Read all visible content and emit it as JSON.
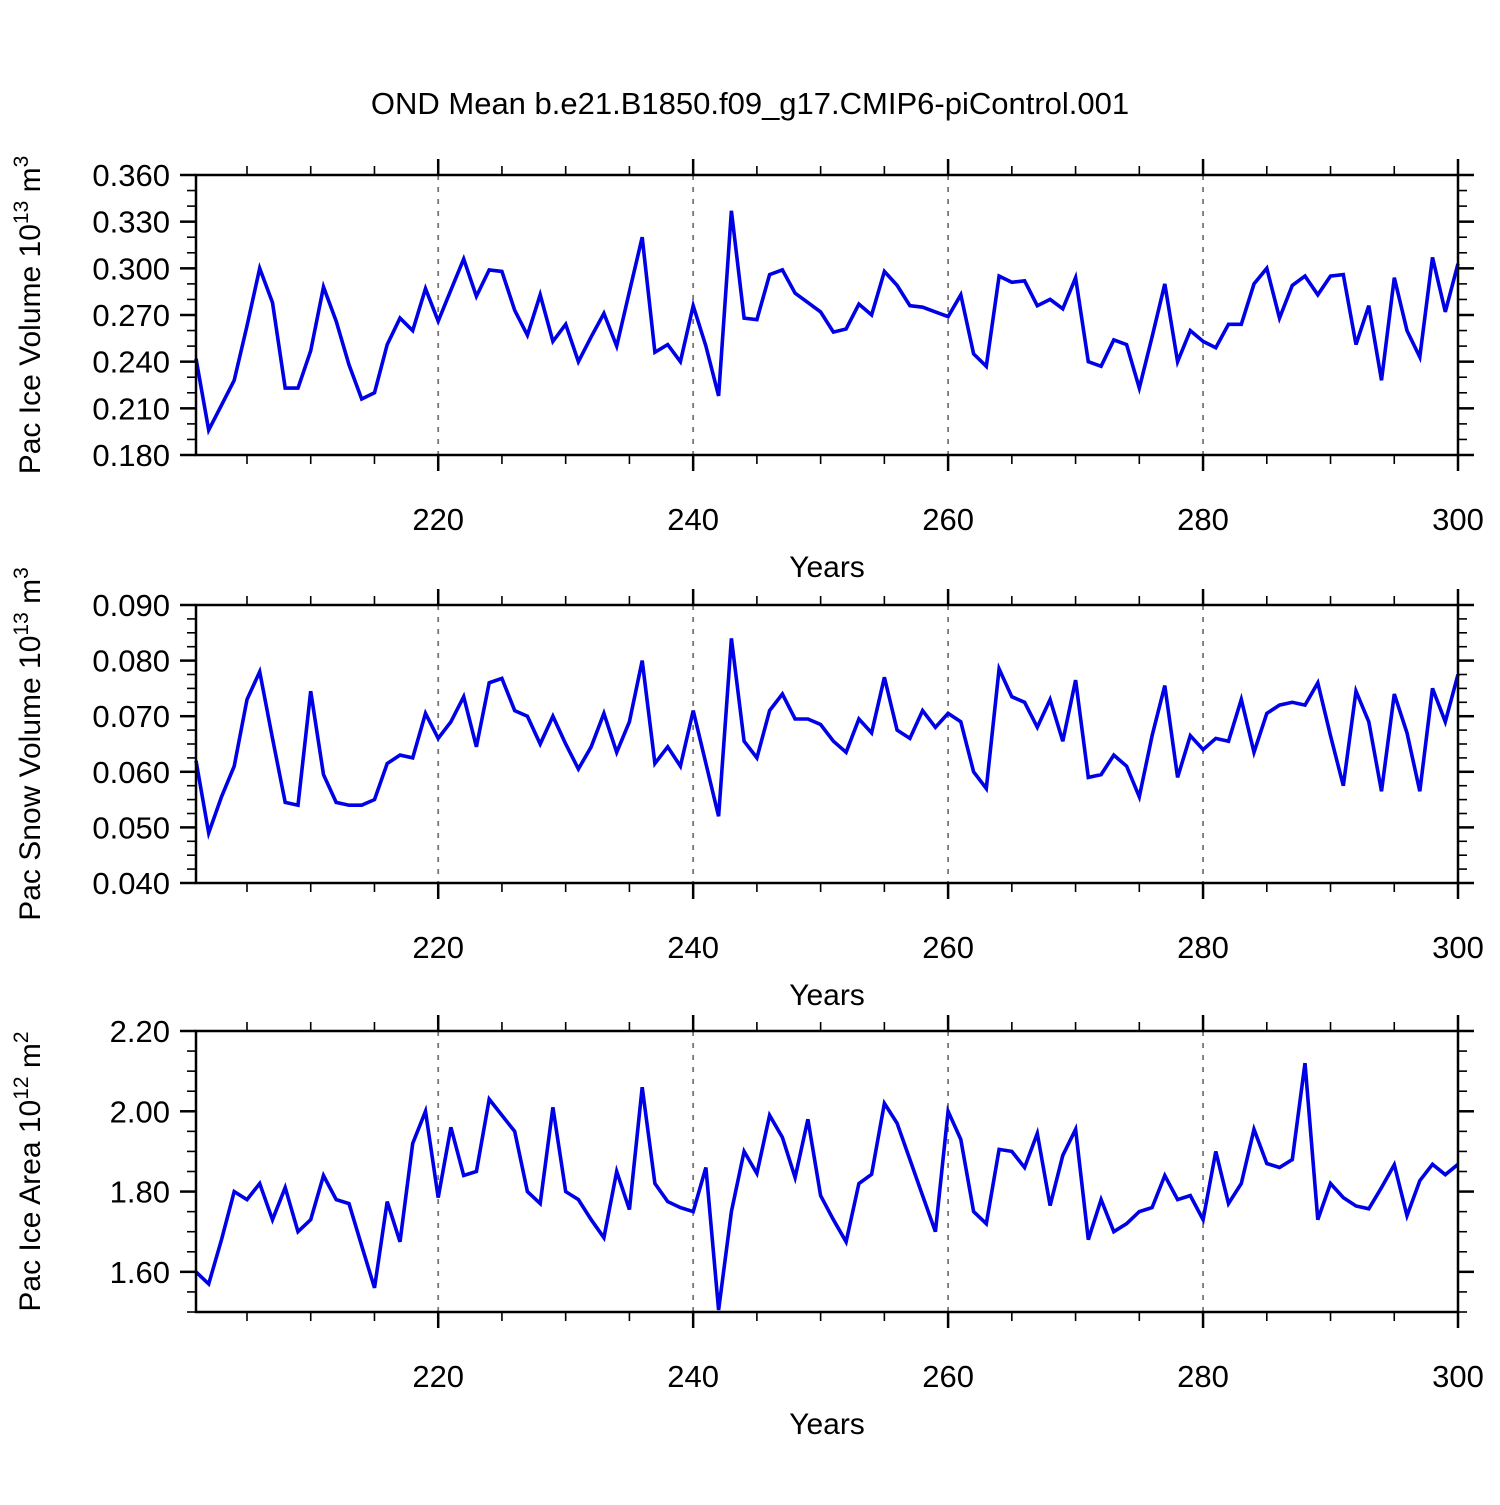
{
  "title": "OND Mean b.e21.B1850.f09_g17.CMIP6-piControl.001",
  "colors": {
    "line": "#0000e6",
    "grid": "#777777",
    "axis": "#000000",
    "background": "#ffffff",
    "text": "#000000"
  },
  "x": {
    "label": "Years",
    "min": 201,
    "max": 300,
    "major_ticks": [
      220,
      240,
      260,
      280,
      300
    ],
    "minor_step": 5,
    "gridlines": [
      220,
      240,
      260,
      280
    ]
  },
  "chart_data": [
    {
      "type": "line",
      "series_name": "Pac Ice Volume",
      "slug": "pac-ice-volume",
      "ylabel": "Pac Ice Volume 10^13 m^3",
      "ylabel_parts": [
        {
          "text": "Pac Ice Volume 10"
        },
        {
          "text": "13",
          "sup": true
        },
        {
          "text": " m"
        },
        {
          "text": "3",
          "sup": true
        }
      ],
      "ylim": [
        0.18,
        0.36
      ],
      "ytick_start": 0.18,
      "ytick_step": 0.03,
      "yminor_step": 0.01,
      "tick_decimals": 3,
      "x_start": 201,
      "x_step": 1,
      "values": [
        0.242,
        0.196,
        0.212,
        0.228,
        0.263,
        0.3,
        0.278,
        0.223,
        0.223,
        0.247,
        0.288,
        0.266,
        0.238,
        0.216,
        0.22,
        0.251,
        0.268,
        0.26,
        0.287,
        0.266,
        0.286,
        0.306,
        0.282,
        0.299,
        0.298,
        0.273,
        0.257,
        0.283,
        0.253,
        0.264,
        0.24,
        0.256,
        0.271,
        0.25,
        0.285,
        0.32,
        0.246,
        0.251,
        0.24,
        0.276,
        0.25,
        0.218,
        0.337,
        0.268,
        0.267,
        0.296,
        0.299,
        0.284,
        0.278,
        0.272,
        0.259,
        0.261,
        0.277,
        0.27,
        0.298,
        0.289,
        0.276,
        0.275,
        0.272,
        0.269,
        0.283,
        0.245,
        0.237,
        0.295,
        0.291,
        0.292,
        0.276,
        0.28,
        0.274,
        0.294,
        0.24,
        0.237,
        0.254,
        0.251,
        0.223,
        0.256,
        0.29,
        0.24,
        0.26,
        0.253,
        0.249,
        0.264,
        0.264,
        0.29,
        0.3,
        0.268,
        0.289,
        0.295,
        0.283,
        0.295,
        0.296,
        0.251,
        0.276,
        0.228,
        0.294,
        0.26,
        0.243,
        0.307,
        0.272,
        0.303
      ]
    },
    {
      "type": "line",
      "series_name": "Pac Snow Volume",
      "slug": "pac-snow-volume",
      "ylabel": "Pac Snow Volume 10^13 m^3",
      "ylabel_parts": [
        {
          "text": "Pac Snow Volume 10"
        },
        {
          "text": "13",
          "sup": true
        },
        {
          "text": " m"
        },
        {
          "text": "3",
          "sup": true
        }
      ],
      "ylim": [
        0.04,
        0.09
      ],
      "ytick_start": 0.04,
      "ytick_step": 0.01,
      "yminor_step": 0.0025,
      "tick_decimals": 3,
      "x_start": 201,
      "x_step": 1,
      "values": [
        0.062,
        0.049,
        0.0555,
        0.061,
        0.073,
        0.078,
        0.066,
        0.0545,
        0.054,
        0.0745,
        0.0595,
        0.0545,
        0.054,
        0.054,
        0.055,
        0.0615,
        0.063,
        0.0625,
        0.0705,
        0.066,
        0.069,
        0.0735,
        0.0645,
        0.076,
        0.0768,
        0.071,
        0.07,
        0.065,
        0.07,
        0.065,
        0.0605,
        0.0645,
        0.0705,
        0.0635,
        0.069,
        0.08,
        0.0615,
        0.0645,
        0.061,
        0.071,
        0.0615,
        0.052,
        0.084,
        0.0655,
        0.0625,
        0.071,
        0.074,
        0.0695,
        0.0695,
        0.0685,
        0.0655,
        0.0635,
        0.0695,
        0.067,
        0.077,
        0.0675,
        0.066,
        0.071,
        0.068,
        0.0705,
        0.069,
        0.06,
        0.057,
        0.0785,
        0.0735,
        0.0725,
        0.068,
        0.073,
        0.0655,
        0.0765,
        0.059,
        0.0595,
        0.063,
        0.061,
        0.0555,
        0.0665,
        0.0755,
        0.059,
        0.0665,
        0.064,
        0.066,
        0.0655,
        0.073,
        0.0635,
        0.0705,
        0.072,
        0.0725,
        0.072,
        0.076,
        0.0665,
        0.0575,
        0.0745,
        0.069,
        0.0565,
        0.074,
        0.067,
        0.0565,
        0.075,
        0.069,
        0.0775
      ]
    },
    {
      "type": "line",
      "series_name": "Pac Ice Area",
      "slug": "pac-ice-area",
      "ylabel": "Pac Ice Area 10^12 m^2",
      "ylabel_parts": [
        {
          "text": "Pac Ice Area 10"
        },
        {
          "text": "12",
          "sup": true
        },
        {
          "text": " m"
        },
        {
          "text": "2",
          "sup": true
        }
      ],
      "ylim": [
        1.5,
        2.2
      ],
      "ytick_start": 1.6,
      "ytick_step": 0.2,
      "yminor_step": 0.05,
      "tick_decimals": 2,
      "x_start": 201,
      "x_step": 1,
      "values": [
        1.6,
        1.57,
        1.68,
        1.8,
        1.78,
        1.82,
        1.73,
        1.81,
        1.7,
        1.73,
        1.84,
        1.78,
        1.77,
        1.665,
        1.56,
        1.775,
        1.675,
        1.92,
        2.0,
        1.785,
        1.96,
        1.84,
        1.85,
        2.03,
        1.99,
        1.95,
        1.8,
        1.77,
        2.01,
        1.8,
        1.78,
        1.73,
        1.685,
        1.85,
        1.755,
        2.06,
        1.82,
        1.775,
        1.76,
        1.75,
        1.86,
        1.505,
        1.75,
        1.9,
        1.845,
        1.99,
        1.935,
        1.835,
        1.98,
        1.79,
        1.73,
        1.675,
        1.82,
        1.843,
        2.02,
        1.97,
        1.88,
        1.79,
        1.7,
        2.0,
        1.93,
        1.75,
        1.72,
        1.905,
        1.9,
        1.86,
        1.945,
        1.765,
        1.89,
        1.955,
        1.68,
        1.78,
        1.7,
        1.72,
        1.75,
        1.76,
        1.84,
        1.78,
        1.79,
        1.73,
        1.9,
        1.77,
        1.82,
        1.955,
        1.87,
        1.86,
        1.88,
        2.12,
        1.73,
        1.82,
        1.785,
        1.764,
        1.757,
        1.81,
        1.867,
        1.74,
        1.827,
        1.868,
        1.842,
        1.868
      ]
    }
  ]
}
